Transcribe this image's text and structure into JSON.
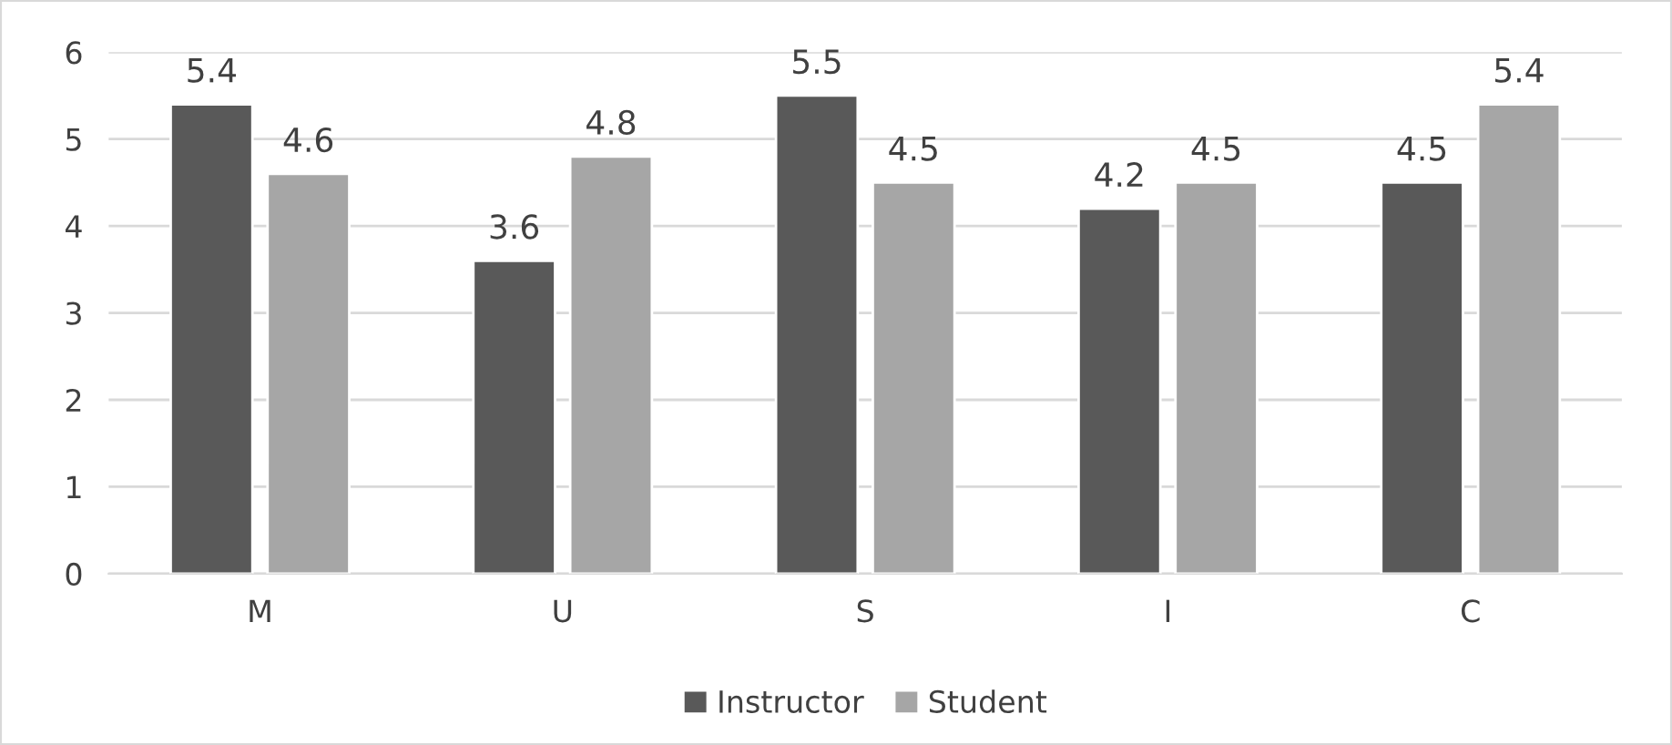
{
  "chart_data": {
    "type": "bar",
    "categories": [
      "M",
      "U",
      "S",
      "I",
      "C"
    ],
    "series": [
      {
        "name": "Instructor",
        "color": "#595959",
        "values": [
          5.4,
          3.6,
          5.5,
          4.2,
          4.5
        ]
      },
      {
        "name": "Student",
        "color": "#a6a6a6",
        "values": [
          4.6,
          4.8,
          4.5,
          4.5,
          5.4
        ]
      }
    ],
    "ylim": [
      0,
      6
    ],
    "yticks": [
      0,
      1,
      2,
      3,
      4,
      5,
      6
    ],
    "grid": "y",
    "legend": "bottom",
    "data_labels": true
  }
}
